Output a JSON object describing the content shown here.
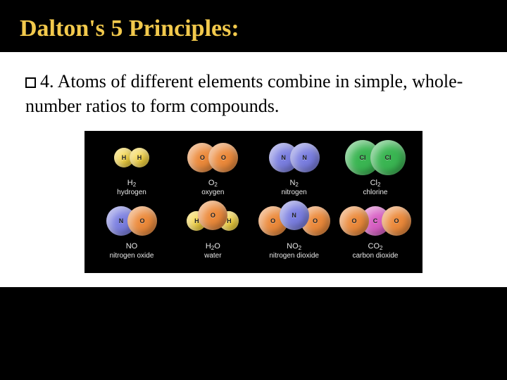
{
  "title": "Dalton's 5 Principles:",
  "principle": {
    "number": "4.",
    "text": "Atoms of different elements combine in simple, whole-number ratios to form compounds."
  },
  "colors": {
    "H": "#f5d33a",
    "O": "#ec8a3b",
    "N": "#7a7ee0",
    "Cl": "#3ab552",
    "C": "#d85fc4"
  },
  "atom_sizes": {
    "small": 28,
    "med": 42,
    "big": 50,
    "overlap_small": -6,
    "overlap_med": -12,
    "overlap_big": -14
  },
  "row1": [
    {
      "atoms": [
        "H",
        "H"
      ],
      "size": "small",
      "formula_symbol": "H",
      "formula_sub": "2",
      "name": "hydrogen"
    },
    {
      "atoms": [
        "O",
        "O"
      ],
      "size": "med",
      "formula_symbol": "O",
      "formula_sub": "2",
      "name": "oxygen"
    },
    {
      "atoms": [
        "N",
        "N"
      ],
      "size": "med",
      "formula_symbol": "N",
      "formula_sub": "2",
      "name": "nitrogen"
    },
    {
      "atoms": [
        "Cl",
        "Cl"
      ],
      "size": "big",
      "formula_symbol": "Cl",
      "formula_sub": "2",
      "name": "chlorine"
    }
  ],
  "row2": [
    {
      "atoms": [
        "N",
        "O"
      ],
      "size": "med",
      "formula": "NO",
      "name": "nitrogen oxide"
    },
    {
      "atoms": [
        "H",
        "O",
        "H"
      ],
      "centerElevated": true,
      "formula_symbol": "H",
      "formula_sub": "2",
      "formula_tail": "O",
      "name": "water"
    },
    {
      "atoms": [
        "O",
        "N",
        "O"
      ],
      "centerElevated": true,
      "formula_symbol": "NO",
      "formula_sub": "2",
      "name": "nitrogen dioxide"
    },
    {
      "atoms": [
        "O",
        "C",
        "O"
      ],
      "formula_symbol": "CO",
      "formula_sub": "2",
      "name": "carbon dioxide"
    }
  ]
}
